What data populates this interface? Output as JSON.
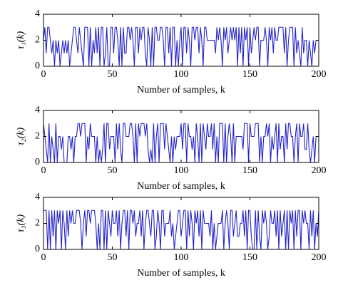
{
  "chart_data": [
    {
      "type": "line",
      "ylabel": "τ₁(k)",
      "xlabel": "Number of samples, k",
      "xlim": [
        0,
        200
      ],
      "xticks": [
        0,
        50,
        100,
        150,
        200
      ],
      "ylim": [
        0,
        4
      ],
      "yticks": [
        0,
        2,
        4
      ],
      "x": [
        0,
        1,
        2,
        3,
        4,
        5,
        6,
        7,
        8,
        9,
        10,
        11,
        12,
        13,
        14,
        15,
        16,
        17,
        18,
        19,
        20,
        21,
        22,
        23,
        24,
        25,
        26,
        27,
        28,
        29,
        30,
        31,
        32,
        33,
        34,
        35,
        36,
        37,
        38,
        39,
        40,
        41,
        42,
        43,
        44,
        45,
        46,
        47,
        48,
        49,
        50,
        51,
        52,
        53,
        54,
        55,
        56,
        57,
        58,
        59,
        60,
        61,
        62,
        63,
        64,
        65,
        66,
        67,
        68,
        69,
        70,
        71,
        72,
        73,
        74,
        75,
        76,
        77,
        78,
        79,
        80,
        81,
        82,
        83,
        84,
        85,
        86,
        87,
        88,
        89,
        90,
        91,
        92,
        93,
        94,
        95,
        96,
        97,
        98,
        99,
        100,
        101,
        102,
        103,
        104,
        105,
        106,
        107,
        108,
        109,
        110,
        111,
        112,
        113,
        114,
        115,
        116,
        117,
        118,
        119,
        120,
        121,
        122,
        123,
        124,
        125,
        126,
        127,
        128,
        129,
        130,
        131,
        132,
        133,
        134,
        135,
        136,
        137,
        138,
        139,
        140,
        141,
        142,
        143,
        144,
        145,
        146,
        147,
        148,
        149,
        150,
        151,
        152,
        153,
        154,
        155,
        156,
        157,
        158,
        159,
        160,
        161,
        162,
        163,
        164,
        165,
        166,
        167,
        168,
        169,
        170,
        171,
        172,
        173,
        174,
        175,
        176,
        177,
        178,
        179,
        180,
        181,
        182,
        183,
        184,
        185,
        186,
        187,
        188,
        189,
        190,
        191,
        192,
        193,
        194,
        195,
        196,
        197,
        198,
        199,
        200
      ],
      "series": [
        {
          "color": "#2323c8",
          "values": [
            2,
            3,
            1,
            3,
            3,
            2,
            1,
            2,
            0,
            2,
            1,
            2,
            0,
            1,
            2,
            1,
            2,
            1,
            2,
            0,
            1,
            2,
            3,
            3,
            2,
            1,
            3,
            2,
            1,
            0,
            3,
            3,
            3,
            0,
            3,
            0,
            2,
            1,
            3,
            1,
            3,
            0,
            3,
            3,
            0,
            1,
            3,
            0,
            0,
            3,
            3,
            1,
            3,
            3,
            2,
            0,
            3,
            0,
            3,
            1,
            1,
            3,
            3,
            2,
            3,
            2,
            0,
            3,
            3,
            1,
            3,
            2,
            3,
            3,
            1,
            0,
            3,
            2,
            0,
            3,
            0,
            3,
            3,
            2,
            2,
            3,
            3,
            2,
            0,
            3,
            3,
            1,
            3,
            0,
            3,
            3,
            0,
            2,
            0,
            2,
            3,
            0,
            3,
            3,
            1,
            3,
            2,
            0,
            3,
            3,
            2,
            3,
            3,
            1,
            3,
            2,
            0,
            3,
            3,
            2,
            2,
            2,
            2,
            2,
            2,
            1,
            3,
            2,
            3,
            2,
            0,
            3,
            2,
            3,
            1,
            2,
            3,
            2,
            3,
            2,
            3,
            0,
            3,
            1,
            3,
            0,
            3,
            2,
            3,
            0,
            3,
            1,
            2,
            3,
            2,
            3,
            3,
            0,
            2,
            2,
            2,
            3,
            2,
            0,
            3,
            2,
            3,
            1,
            3,
            2,
            2,
            3,
            3,
            3,
            3,
            1,
            3,
            0,
            2,
            3,
            3,
            3,
            0,
            3,
            1,
            2,
            1,
            0,
            3,
            1,
            2,
            2,
            0,
            2,
            1,
            0,
            2,
            1,
            2,
            2,
            2
          ]
        }
      ]
    },
    {
      "type": "line",
      "ylabel": "τ₂(k)",
      "xlabel": "Number of samples, k",
      "xlim": [
        0,
        200
      ],
      "xticks": [
        0,
        50,
        100,
        150,
        200
      ],
      "ylim": [
        0,
        4
      ],
      "yticks": [
        0,
        2,
        4
      ],
      "x": [
        0,
        1,
        2,
        3,
        4,
        5,
        6,
        7,
        8,
        9,
        10,
        11,
        12,
        13,
        14,
        15,
        16,
        17,
        18,
        19,
        20,
        21,
        22,
        23,
        24,
        25,
        26,
        27,
        28,
        29,
        30,
        31,
        32,
        33,
        34,
        35,
        36,
        37,
        38,
        39,
        40,
        41,
        42,
        43,
        44,
        45,
        46,
        47,
        48,
        49,
        50,
        51,
        52,
        53,
        54,
        55,
        56,
        57,
        58,
        59,
        60,
        61,
        62,
        63,
        64,
        65,
        66,
        67,
        68,
        69,
        70,
        71,
        72,
        73,
        74,
        75,
        76,
        77,
        78,
        79,
        80,
        81,
        82,
        83,
        84,
        85,
        86,
        87,
        88,
        89,
        90,
        91,
        92,
        93,
        94,
        95,
        96,
        97,
        98,
        99,
        100,
        101,
        102,
        103,
        104,
        105,
        106,
        107,
        108,
        109,
        110,
        111,
        112,
        113,
        114,
        115,
        116,
        117,
        118,
        119,
        120,
        121,
        122,
        123,
        124,
        125,
        126,
        127,
        128,
        129,
        130,
        131,
        132,
        133,
        134,
        135,
        136,
        137,
        138,
        139,
        140,
        141,
        142,
        143,
        144,
        145,
        146,
        147,
        148,
        149,
        150,
        151,
        152,
        153,
        154,
        155,
        156,
        157,
        158,
        159,
        160,
        161,
        162,
        163,
        164,
        165,
        166,
        167,
        168,
        169,
        170,
        171,
        172,
        173,
        174,
        175,
        176,
        177,
        178,
        179,
        180,
        181,
        182,
        183,
        184,
        185,
        186,
        187,
        188,
        189,
        190,
        191,
        192,
        193,
        194,
        195,
        196,
        197,
        198,
        199,
        200
      ],
      "series": [
        {
          "color": "#2323c8",
          "values": [
            3,
            2,
            1,
            0,
            3,
            0,
            2,
            1,
            0,
            3,
            0,
            2,
            2,
            1,
            2,
            0,
            0,
            0,
            2,
            2,
            1,
            2,
            0,
            2,
            2,
            3,
            3,
            2,
            3,
            3,
            3,
            0,
            2,
            1,
            3,
            2,
            2,
            2,
            0,
            2,
            0,
            1,
            0,
            1,
            3,
            0,
            3,
            3,
            1,
            2,
            2,
            2,
            0,
            3,
            1,
            3,
            1,
            0,
            3,
            3,
            2,
            2,
            2,
            3,
            3,
            2,
            0,
            3,
            0,
            3,
            2,
            3,
            3,
            3,
            2,
            3,
            1,
            0,
            1,
            0,
            3,
            0,
            2,
            3,
            0,
            3,
            3,
            3,
            1,
            3,
            2,
            1,
            0,
            2,
            0,
            2,
            1,
            2,
            2,
            2,
            3,
            1,
            3,
            3,
            0,
            3,
            2,
            2,
            1,
            2,
            0,
            3,
            2,
            0,
            3,
            0,
            3,
            2,
            1,
            3,
            2,
            2,
            3,
            1,
            3,
            0,
            2,
            0,
            3,
            3,
            3,
            0,
            3,
            0,
            2,
            3,
            2,
            0,
            3,
            0,
            2,
            2,
            2,
            2,
            2,
            1,
            3,
            3,
            3,
            0,
            3,
            2,
            2,
            2,
            3,
            3,
            3,
            0,
            2,
            0,
            2,
            2,
            3,
            2,
            3,
            0,
            2,
            1,
            2,
            3,
            0,
            3,
            1,
            2,
            2,
            0,
            3,
            1,
            3,
            3,
            2,
            2,
            0,
            2,
            3,
            0,
            3,
            2,
            2,
            3,
            1,
            1,
            3,
            1,
            0,
            1,
            2,
            0,
            2,
            2,
            2
          ]
        }
      ]
    },
    {
      "type": "line",
      "ylabel": "τ₃(k)",
      "xlabel": "Number of samples, k",
      "xlim": [
        0,
        200
      ],
      "xticks": [
        0,
        50,
        100,
        150,
        200
      ],
      "ylim": [
        0,
        4
      ],
      "yticks": [
        0,
        2,
        4
      ],
      "x": [
        0,
        1,
        2,
        3,
        4,
        5,
        6,
        7,
        8,
        9,
        10,
        11,
        12,
        13,
        14,
        15,
        16,
        17,
        18,
        19,
        20,
        21,
        22,
        23,
        24,
        25,
        26,
        27,
        28,
        29,
        30,
        31,
        32,
        33,
        34,
        35,
        36,
        37,
        38,
        39,
        40,
        41,
        42,
        43,
        44,
        45,
        46,
        47,
        48,
        49,
        50,
        51,
        52,
        53,
        54,
        55,
        56,
        57,
        58,
        59,
        60,
        61,
        62,
        63,
        64,
        65,
        66,
        67,
        68,
        69,
        70,
        71,
        72,
        73,
        74,
        75,
        76,
        77,
        78,
        79,
        80,
        81,
        82,
        83,
        84,
        85,
        86,
        87,
        88,
        89,
        90,
        91,
        92,
        93,
        94,
        95,
        96,
        97,
        98,
        99,
        100,
        101,
        102,
        103,
        104,
        105,
        106,
        107,
        108,
        109,
        110,
        111,
        112,
        113,
        114,
        115,
        116,
        117,
        118,
        119,
        120,
        121,
        122,
        123,
        124,
        125,
        126,
        127,
        128,
        129,
        130,
        131,
        132,
        133,
        134,
        135,
        136,
        137,
        138,
        139,
        140,
        141,
        142,
        143,
        144,
        145,
        146,
        147,
        148,
        149,
        150,
        151,
        152,
        153,
        154,
        155,
        156,
        157,
        158,
        159,
        160,
        161,
        162,
        163,
        164,
        165,
        166,
        167,
        168,
        169,
        170,
        171,
        172,
        173,
        174,
        175,
        176,
        177,
        178,
        179,
        180,
        181,
        182,
        183,
        184,
        185,
        186,
        187,
        188,
        189,
        190,
        191,
        192,
        193,
        194,
        195,
        196,
        197,
        198,
        199,
        200
      ],
      "series": [
        {
          "color": "#2323c8",
          "values": [
            3,
            3,
            3,
            0,
            3,
            0,
            3,
            1,
            3,
            0,
            3,
            2,
            3,
            0,
            3,
            2,
            0,
            3,
            1,
            3,
            2,
            3,
            2,
            2,
            3,
            3,
            3,
            2,
            0,
            2,
            3,
            1,
            3,
            3,
            2,
            3,
            3,
            3,
            2,
            0,
            2,
            0,
            3,
            3,
            0,
            3,
            0,
            3,
            2,
            1,
            3,
            2,
            2,
            3,
            1,
            3,
            0,
            2,
            3,
            3,
            1,
            3,
            0,
            3,
            3,
            2,
            3,
            1,
            2,
            2,
            3,
            1,
            3,
            0,
            2,
            3,
            3,
            2,
            1,
            3,
            3,
            0,
            1,
            3,
            2,
            0,
            3,
            3,
            1,
            2,
            2,
            2,
            3,
            1,
            2,
            0,
            1,
            2,
            3,
            3,
            1,
            2,
            3,
            3,
            0,
            3,
            1,
            3,
            2,
            0,
            3,
            2,
            3,
            1,
            3,
            0,
            3,
            2,
            2,
            2,
            2,
            1,
            3,
            0,
            2,
            0,
            1,
            2,
            2,
            2,
            3,
            0,
            2,
            3,
            2,
            0,
            3,
            3,
            1,
            2,
            3,
            1,
            1,
            2,
            2,
            3,
            1,
            3,
            0,
            3,
            3,
            1,
            0,
            0,
            3,
            0,
            3,
            1,
            0,
            3,
            2,
            3,
            2,
            0,
            1,
            3,
            2,
            2,
            3,
            1,
            3,
            0,
            3,
            1,
            2,
            3,
            0,
            3,
            0,
            3,
            2,
            3,
            0,
            3,
            1,
            3,
            3,
            0,
            3,
            2,
            3,
            2,
            2,
            0,
            3,
            1,
            3,
            0,
            2,
            1,
            3
          ]
        }
      ]
    }
  ]
}
